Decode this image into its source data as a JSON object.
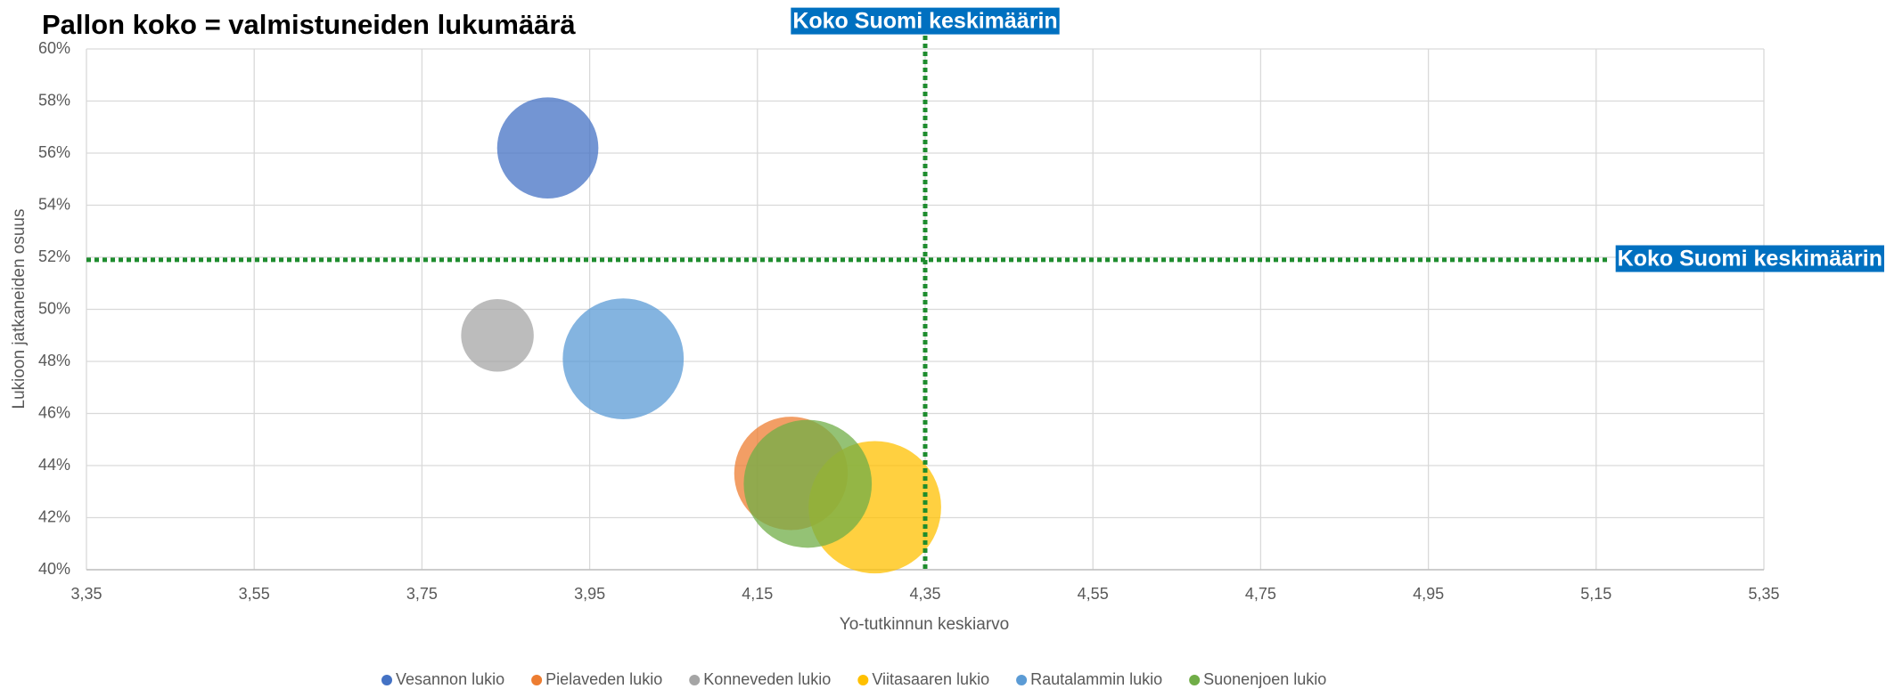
{
  "chart_data": {
    "type": "bubble",
    "title": "Pallon koko = valmistuneiden lukumäärä",
    "x_label": "Yo-tutkinnun keskiarvo",
    "y_label": "Lukioon jatkaneiden osuus",
    "xlim": [
      3.35,
      5.35
    ],
    "xticks": [
      {
        "value": 3.35,
        "label": "3,35"
      },
      {
        "value": 3.55,
        "label": "3,55"
      },
      {
        "value": 3.75,
        "label": "3,75"
      },
      {
        "value": 3.95,
        "label": "3,95"
      },
      {
        "value": 4.15,
        "label": "4,15"
      },
      {
        "value": 4.35,
        "label": "4,35"
      },
      {
        "value": 4.55,
        "label": "4,55"
      },
      {
        "value": 4.75,
        "label": "4,75"
      },
      {
        "value": 4.95,
        "label": "4,95"
      },
      {
        "value": 5.15,
        "label": "5,15"
      },
      {
        "value": 5.35,
        "label": "5,35"
      }
    ],
    "ylim": [
      40,
      60
    ],
    "yticks": [
      {
        "value": 40,
        "label": "40%"
      },
      {
        "value": 42,
        "label": "42%"
      },
      {
        "value": 44,
        "label": "44%"
      },
      {
        "value": 46,
        "label": "46%"
      },
      {
        "value": 48,
        "label": "48%"
      },
      {
        "value": 50,
        "label": "50%"
      },
      {
        "value": 52,
        "label": "52%"
      },
      {
        "value": 54,
        "label": "54%"
      },
      {
        "value": 56,
        "label": "56%"
      },
      {
        "value": 58,
        "label": "58%"
      },
      {
        "value": 60,
        "label": "60%"
      }
    ],
    "grid": true,
    "legend": "bottom",
    "series": [
      {
        "name": "Vesannon lukio",
        "color": "#4472c4",
        "x": [
          3.9
        ],
        "values": [
          56.2
        ],
        "sizes": [
          35
        ]
      },
      {
        "name": "Pielaveden lukio",
        "color": "#ed7d31",
        "x": [
          4.19
        ],
        "values": [
          43.7
        ],
        "sizes": [
          44
        ]
      },
      {
        "name": "Konneveden lukio",
        "color": "#a5a5a5",
        "x": [
          3.84
        ],
        "values": [
          49.0
        ],
        "sizes": [
          18
        ]
      },
      {
        "name": "Viitasaaren lukio",
        "color": "#ffc000",
        "x": [
          4.29
        ],
        "values": [
          42.4
        ],
        "sizes": [
          60
        ]
      },
      {
        "name": "Rautalammin lukio",
        "color": "#5b9bd5",
        "x": [
          3.99
        ],
        "values": [
          48.1
        ],
        "sizes": [
          50
        ]
      },
      {
        "name": "Suonenjoen lukio",
        "color": "#70ad47",
        "x": [
          4.21
        ],
        "values": [
          43.3
        ],
        "sizes": [
          56
        ]
      }
    ],
    "reference_lines": [
      {
        "axis": "x",
        "value": 4.35,
        "label": "Koko Suomi keskimäärin",
        "color": "#1e8c2e"
      },
      {
        "axis": "y",
        "value": 51.9,
        "label": "Koko Suomi keskimäärin",
        "color": "#1e8c2e"
      }
    ]
  }
}
